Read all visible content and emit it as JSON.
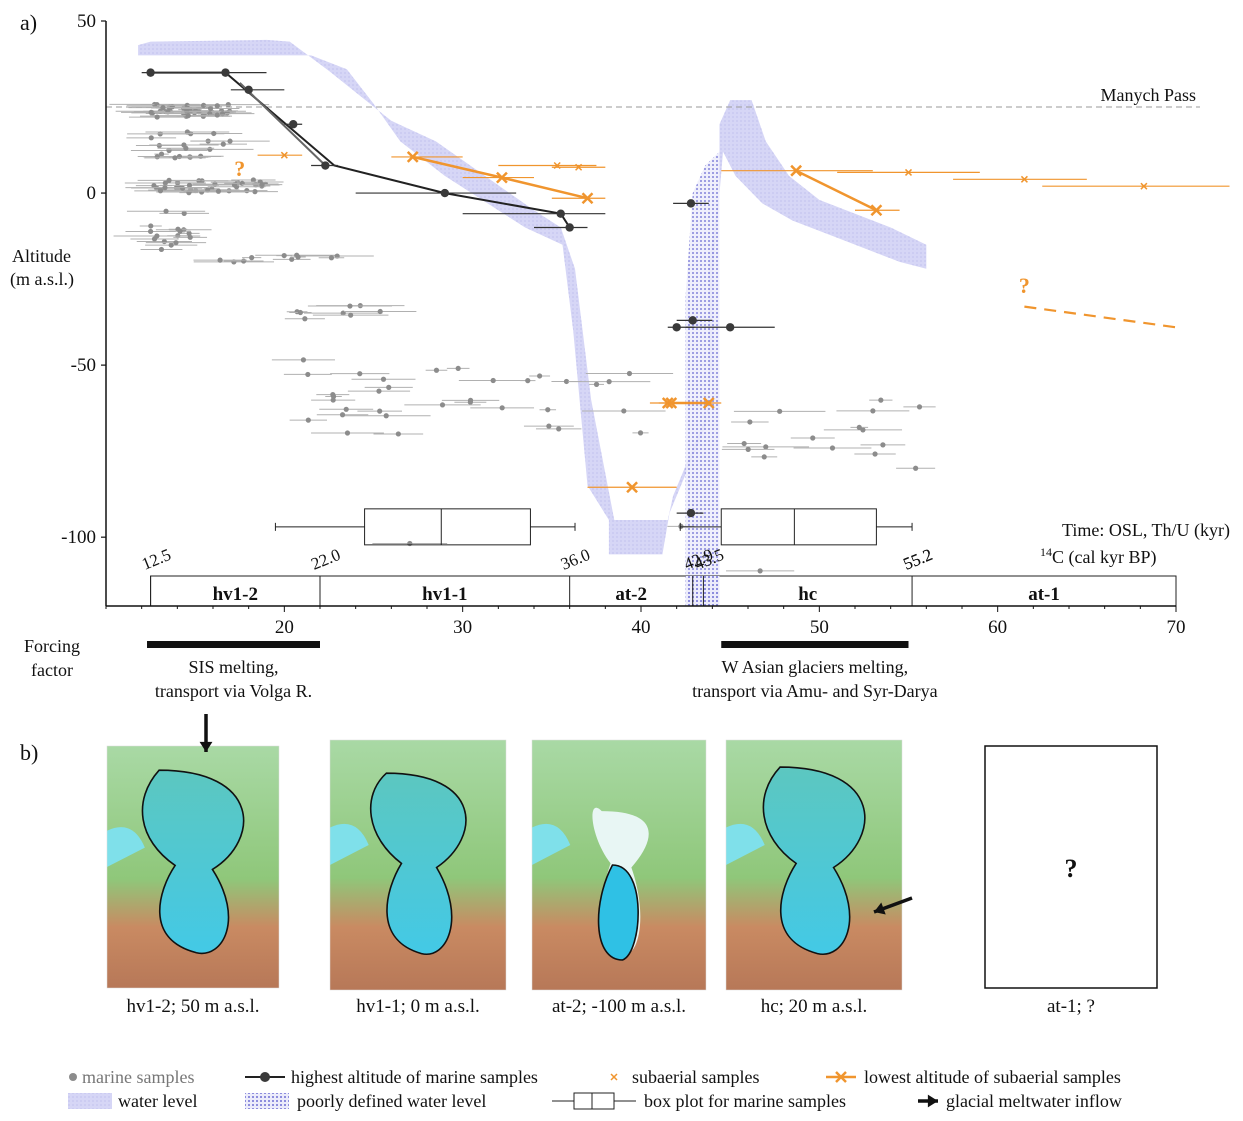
{
  "panel_a_label": "a)",
  "panel_b_label": "b)",
  "manych_label": "Manych Pass",
  "time_label_1": "Time: OSL, Th/U (kyr)",
  "time_label_2_sup": "14",
  "time_label_2_rest": "C (cal kyr BP)",
  "ylabel_1": "Altitude",
  "ylabel_2": "(m a.s.l.)",
  "forcing_label_1": "Forcing",
  "forcing_label_2": "factor",
  "forcing": [
    {
      "x0": 12.3,
      "x1": 22.0,
      "text1": "SIS melting,",
      "text2": "transport via Volga R."
    },
    {
      "x0": 44.5,
      "x1": 55.0,
      "text1": "W Asian glaciers melting,",
      "text2": "transport via Amu- and Syr-Darya"
    }
  ],
  "question_mark": "?",
  "chart_data": {
    "type": "scatter",
    "xlim": [
      10,
      70
    ],
    "ylim": [
      -120,
      50
    ],
    "xticks": [
      20,
      30,
      40,
      50,
      60,
      70
    ],
    "yticks": [
      50,
      0,
      -50,
      -100
    ],
    "manych_pass_level": 25,
    "stages": [
      {
        "name": "hv1-2",
        "start": 12.5,
        "end": 22.0,
        "start_label": "12.5"
      },
      {
        "name": "hv1-1",
        "start": 22.0,
        "end": 36.0,
        "start_label": "22.0"
      },
      {
        "name": "at-2",
        "start": 36.0,
        "end": 42.9,
        "start_label": "36.0"
      },
      {
        "name": "hc",
        "start": 43.5,
        "end": 55.2,
        "start_label": "43.5"
      },
      {
        "name": "at-1",
        "start": 55.2,
        "end": 70.0,
        "start_label": "55.2"
      }
    ],
    "stage_extra_labels": [
      {
        "value": 42.9,
        "label": "42.9"
      },
      {
        "value": 55.2,
        "label": "55.2"
      }
    ],
    "water_level_band": [
      [
        11.8,
        43
      ],
      [
        12.5,
        44
      ],
      [
        19,
        44.5
      ],
      [
        20.3,
        44
      ],
      [
        22.5,
        35.5
      ],
      [
        26,
        21
      ],
      [
        28.5,
        15
      ],
      [
        34,
        -5
      ],
      [
        35.5,
        -10
      ],
      [
        36.3,
        -22
      ],
      [
        37.2,
        -60
      ],
      [
        38.5,
        -95
      ],
      [
        41.5,
        -95
      ],
      [
        41.8,
        -88
      ],
      [
        43.8,
        -63
      ],
      [
        43.8,
        -20
      ],
      [
        44.4,
        0
      ],
      [
        44.4,
        20
      ],
      [
        45,
        27
      ],
      [
        46.2,
        27
      ],
      [
        47,
        15
      ],
      [
        48.3,
        5
      ],
      [
        50,
        -2
      ],
      [
        54,
        -10
      ],
      [
        56,
        -15
      ],
      [
        56,
        -22
      ],
      [
        54.5,
        -20
      ],
      [
        51,
        -13
      ],
      [
        48.5,
        -8
      ],
      [
        46.8,
        -3
      ],
      [
        45.3,
        5
      ],
      [
        44.6,
        12
      ],
      [
        44,
        -25
      ],
      [
        44,
        -50
      ],
      [
        43.6,
        -68
      ],
      [
        41.6,
        -93
      ],
      [
        41.2,
        -105
      ],
      [
        38.2,
        -105
      ],
      [
        38.2,
        -95
      ],
      [
        37,
        -85
      ],
      [
        36.2,
        -40
      ],
      [
        35.6,
        -15
      ],
      [
        33.5,
        -10
      ],
      [
        29,
        5
      ],
      [
        26.5,
        15
      ],
      [
        25,
        26
      ],
      [
        23.5,
        36
      ],
      [
        21.5,
        40
      ],
      [
        12.5,
        40
      ],
      [
        11.8,
        40
      ]
    ],
    "poorly_defined_band": [
      [
        42.5,
        -115
      ],
      [
        42.5,
        -30
      ],
      [
        42.9,
        0
      ],
      [
        43.6,
        8
      ],
      [
        44.4,
        12
      ],
      [
        44.4,
        -115
      ]
    ],
    "marine_highest_line": [
      [
        12.5,
        35
      ],
      [
        16.7,
        35
      ],
      [
        22.8,
        8
      ],
      [
        29.0,
        0
      ],
      [
        35.5,
        -6
      ],
      [
        36.0,
        -10
      ]
    ],
    "marine_highest_line_gray": [
      [
        17.5,
        32
      ],
      [
        22.3,
        8
      ]
    ],
    "marine_highest_points": [
      [
        12.5,
        35,
        12,
        14
      ],
      [
        16.7,
        35,
        14,
        19
      ],
      [
        18.0,
        30,
        17,
        20
      ],
      [
        20.5,
        20,
        20,
        21
      ],
      [
        22.3,
        8,
        21.5,
        23
      ],
      [
        29.0,
        0,
        24,
        33
      ],
      [
        35.5,
        -6,
        30,
        38
      ],
      [
        36.0,
        -10,
        34,
        37
      ],
      [
        42.8,
        -3,
        41.8,
        43.8
      ],
      [
        42.0,
        -39,
        41.5,
        43
      ],
      [
        42.9,
        -37,
        42,
        44
      ],
      [
        45.0,
        -39,
        42.5,
        47.5
      ],
      [
        42.8,
        -93,
        42,
        43.5
      ]
    ],
    "subaerial_lowest_line_1": [
      [
        27.2,
        10.5
      ],
      [
        32.2,
        4.5
      ],
      [
        37.0,
        -1.5
      ]
    ],
    "subaerial_lowest_line_2": [
      [
        48.7,
        6.5
      ],
      [
        53.2,
        -5
      ]
    ],
    "subaerial_lowest_points": [
      [
        27.2,
        10.5,
        26,
        30
      ],
      [
        32.2,
        4.5,
        30,
        34
      ],
      [
        37.0,
        -1.5,
        35,
        38
      ],
      [
        41.5,
        -61,
        40.5,
        42.5
      ],
      [
        41.7,
        -61,
        41,
        42.8
      ],
      [
        43.8,
        -61,
        43.2,
        44.5
      ],
      [
        39.5,
        -85.5,
        37,
        42
      ],
      [
        48.7,
        6.5,
        44.5,
        53
      ],
      [
        53.2,
        -5,
        52,
        54.5
      ]
    ],
    "subaerial_points": [
      [
        20.0,
        11,
        18.5,
        21
      ],
      [
        35.3,
        8,
        32,
        37.5
      ],
      [
        36.5,
        7.5,
        35,
        38
      ],
      [
        55.0,
        6,
        51,
        59
      ],
      [
        61.5,
        4,
        57.5,
        65
      ],
      [
        68.2,
        2,
        62.5,
        73
      ]
    ],
    "subaerial_dashed_line": [
      [
        61.5,
        -33
      ],
      [
        70,
        -39
      ]
    ],
    "boxplot_1": {
      "whisker_low": 19.5,
      "q1": 24.5,
      "median": 28.8,
      "q3": 33.8,
      "whisker_high": 36.3,
      "y": -97
    },
    "boxplot_2": {
      "whisker_low": 42.2,
      "q1": 44.5,
      "median": 48.6,
      "q3": 53.2,
      "whisker_high": 55.2,
      "y": -97
    },
    "question_marks_chart": [
      [
        17.5,
        5
      ],
      [
        61.5,
        -29
      ]
    ]
  },
  "maps": [
    {
      "caption": "hv1-2; 50 m a.s.l."
    },
    {
      "caption": "hv1-1; 0 m a.s.l."
    },
    {
      "caption": "at-2; -100 m a.s.l."
    },
    {
      "caption": "hc; 20 m a.s.l."
    },
    {
      "caption": "at-1; ?"
    }
  ],
  "legend": [
    {
      "key": "marine",
      "label": "marine samples"
    },
    {
      "key": "marine_high",
      "label": "highest altitude of marine samples"
    },
    {
      "key": "subaerial",
      "label": "subaerial samples"
    },
    {
      "key": "subaerial_low",
      "label": "lowest altitude of subaerial samples"
    },
    {
      "key": "water",
      "label": "water level"
    },
    {
      "key": "poor",
      "label": "poorly defined water level"
    },
    {
      "key": "box",
      "label": "box plot for marine samples"
    },
    {
      "key": "arrow",
      "label": "glacial meltwater inflow"
    }
  ],
  "colors": {
    "marine": "#8c8c8c",
    "marine_high": "#3a3a3a",
    "subaerial": "#f0952e",
    "water": "#c9c9f2",
    "poor": "#8d8ddd",
    "map_water": "#7fe0ea",
    "map_land": "#8fc77a",
    "map_mountain": "#c98a62"
  }
}
